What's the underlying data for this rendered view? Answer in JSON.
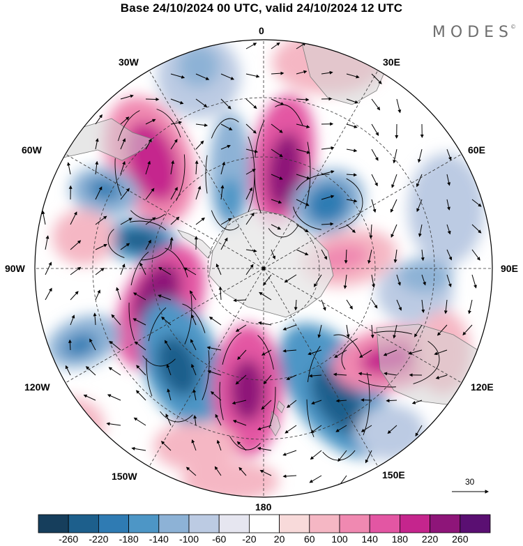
{
  "title": "Base 24/10/2024 00 UTC, valid 24/10/2024 12 UTC",
  "brand": "MODES",
  "brand_mark": "©",
  "longitude_labels": {
    "n": "0",
    "ne": "30E",
    "e1": "60E",
    "e": "90E",
    "se1": "120E",
    "se": "150E",
    "s": "180",
    "sw": "150W",
    "sw1": "120W",
    "w": "90W",
    "nw1": "60W",
    "nw": "30W"
  },
  "reference_vector": {
    "label": "30"
  },
  "colorbar": {
    "tick_labels": [
      "-260",
      "-220",
      "-180",
      "-140",
      "-100",
      "-60",
      "-20",
      "20",
      "60",
      "100",
      "140",
      "180",
      "220",
      "260"
    ],
    "colors": [
      "#163e5c",
      "#1d5f8c",
      "#2f7bb3",
      "#4d96c6",
      "#8db2d6",
      "#bccbe3",
      "#e6e6f0",
      "#ffffff",
      "#f8dada",
      "#f5b7c4",
      "#f089b1",
      "#e356a3",
      "#c5258d",
      "#8e1579",
      "#5a0f72"
    ]
  },
  "map_colors": {
    "land": "#d3d3d3",
    "antarctica": "#e6e6e6",
    "coast": "#7a7a7a",
    "graticule": "#333333"
  }
}
